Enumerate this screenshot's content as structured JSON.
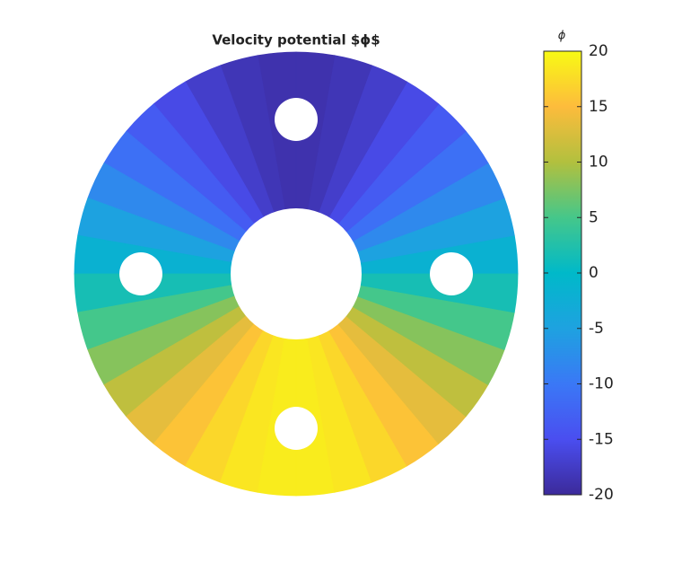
{
  "chart_data": {
    "type": "polar-field",
    "title": "Velocity potential $ϕ$",
    "colorbar_label": "ϕ",
    "theta": [
      5,
      15,
      25,
      35,
      45,
      55,
      65,
      75,
      85,
      95,
      105,
      115,
      125,
      135,
      145,
      155,
      165,
      175,
      185,
      195,
      205,
      215,
      225,
      235,
      245,
      255,
      265,
      275,
      285,
      295,
      305,
      315,
      325,
      335,
      345,
      355
    ],
    "values": [
      -1.7,
      -4.9,
      -8,
      -10.9,
      -13.4,
      -15.6,
      -17.2,
      -18.4,
      -18.9,
      -18.9,
      -18.4,
      -17.2,
      -15.6,
      -13.4,
      -10.9,
      -8,
      -4.9,
      -1.7,
      1.7,
      4.9,
      8,
      10.9,
      13.4,
      15.6,
      17.2,
      18.4,
      18.9,
      18.9,
      18.4,
      17.2,
      15.6,
      13.4,
      10.9,
      8,
      4.9,
      1.7
    ],
    "clim": [
      -20,
      20
    ],
    "cticks": [
      -20,
      -15,
      -10,
      -5,
      0,
      5,
      10,
      15,
      20
    ],
    "colormap": [
      "#3c2a9a",
      "#4a4ef0",
      "#3a78f6",
      "#1ea2e0",
      "#00b9c9",
      "#45c78a",
      "#b2c03e",
      "#fdbc3c",
      "#f8fa14"
    ]
  }
}
